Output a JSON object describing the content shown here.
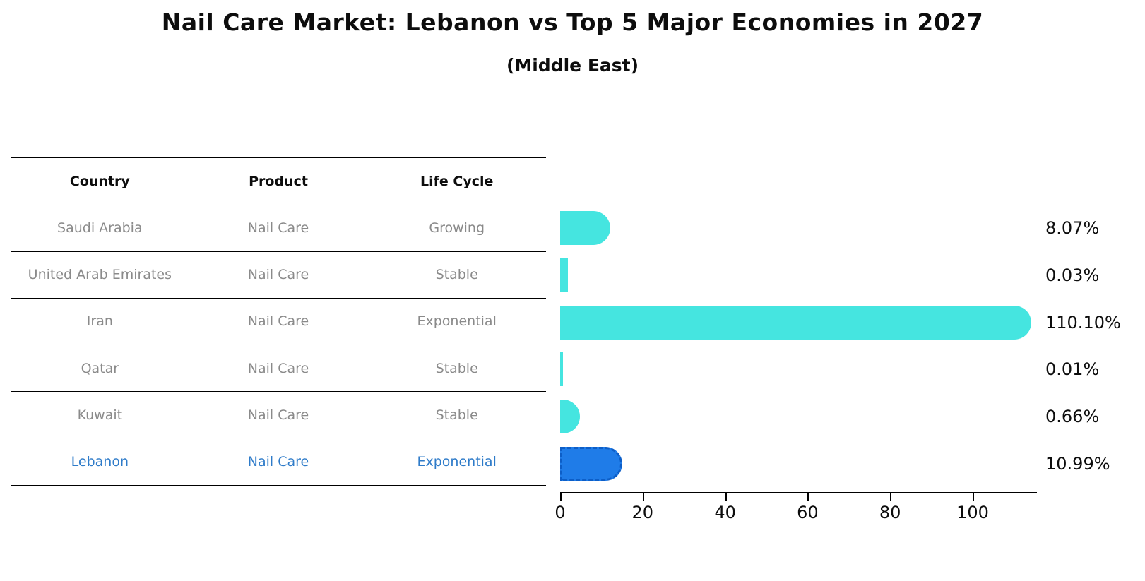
{
  "header": {
    "title": "Nail Care Market: Lebanon vs Top 5 Major Economies in 2027",
    "subtitle": "(Middle East)"
  },
  "table": {
    "headers": {
      "country": "Country",
      "product": "Product",
      "life_cycle": "Life Cycle"
    },
    "rows": [
      {
        "country": "Saudi Arabia",
        "product": "Nail Care",
        "life_cycle": "Growing",
        "highlighted": false
      },
      {
        "country": "United Arab Emirates",
        "product": "Nail Care",
        "life_cycle": "Stable",
        "highlighted": false
      },
      {
        "country": "Iran",
        "product": "Nail Care",
        "life_cycle": "Exponential",
        "highlighted": false
      },
      {
        "country": "Qatar",
        "product": "Nail Care",
        "life_cycle": "Stable",
        "highlighted": false
      },
      {
        "country": "Kuwait",
        "product": "Nail Care",
        "life_cycle": "Stable",
        "highlighted": false
      },
      {
        "country": "Lebanon",
        "product": "Nail Care",
        "life_cycle": "Exponential",
        "highlighted": true
      }
    ]
  },
  "chart_data": {
    "type": "bar",
    "orientation": "horizontal",
    "title": "Nail Care Market: Lebanon vs Top 5 Major Economies in 2027 (Middle East)",
    "categories": [
      "Saudi Arabia",
      "United Arab Emirates",
      "Iran",
      "Qatar",
      "Kuwait",
      "Lebanon"
    ],
    "values": [
      8.07,
      0.03,
      110.1,
      0.01,
      0.66,
      10.99
    ],
    "value_labels": [
      "8.07%",
      "0.03%",
      "110.10%",
      "0.01%",
      "0.66%",
      "10.99%"
    ],
    "x_ticks": [
      0,
      20,
      40,
      60,
      80,
      100
    ],
    "xlim": [
      0,
      115.5
    ],
    "grid": false,
    "legend": "none",
    "bar_color": "#45e5e0",
    "highlight_color": "#1f7ce8",
    "highlight_border_color": "#0d5ec7",
    "highlight_index": 5,
    "highlight_text_color": "#2e7bc9",
    "row_text_color": "#8a8a8a"
  }
}
